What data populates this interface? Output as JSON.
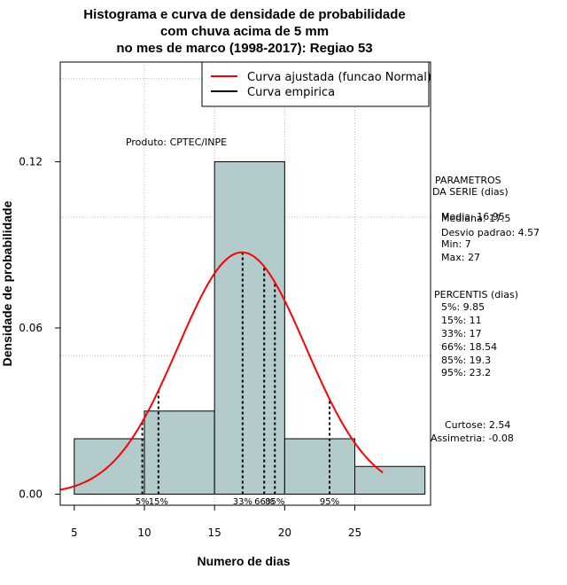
{
  "chart_data": {
    "type": "histogram",
    "title_lines": [
      "Histograma e curva de densidade de probabilidade",
      "com chuva acima de 5 mm",
      "no mes de marco (1998-2017): Regiao 53"
    ],
    "xlabel": "Numero de dias",
    "ylabel": "Densidade de probabilidade",
    "xlim": [
      4,
      30.4
    ],
    "ylim": [
      -0.004,
      0.156
    ],
    "xticks": [
      5,
      10,
      15,
      20,
      25
    ],
    "xtick_labels": [
      "5",
      "10",
      "15",
      "20",
      "25"
    ],
    "yticks": [
      0.0,
      0.06,
      0.12
    ],
    "ytick_labels": [
      "0.00",
      "0.06",
      "0.12"
    ],
    "grid_x": [
      10,
      15,
      20,
      25
    ],
    "grid_y": [
      0.05,
      0.1,
      0.15
    ],
    "bins": [
      {
        "from": 5,
        "to": 10,
        "density": 0.02
      },
      {
        "from": 10,
        "to": 15,
        "density": 0.03
      },
      {
        "from": 15,
        "to": 20,
        "density": 0.12
      },
      {
        "from": 20,
        "to": 25,
        "density": 0.02
      },
      {
        "from": 25,
        "to": 30,
        "density": 0.01
      }
    ],
    "bar_color": "#b4cbcb",
    "curve": {
      "name": "Curva ajustada (funcao Normal)",
      "distribution": "normal",
      "mean": 16.95,
      "sd": 4.57,
      "x_from": 4,
      "x_to": 27,
      "color": "#ff0000"
    },
    "percentile_markers": [
      {
        "label": "5%",
        "x": 9.85
      },
      {
        "label": "15%",
        "x": 11
      },
      {
        "label": "33%",
        "x": 17
      },
      {
        "label": "66%",
        "x": 18.54
      },
      {
        "label": "85%",
        "x": 19.3
      },
      {
        "label": "95%",
        "x": 23.2
      }
    ],
    "legend": {
      "position": "top-right",
      "entries": [
        {
          "label": "Curva ajustada (funcao Normal)",
          "color": "#ff0000"
        },
        {
          "label": "Curva empirica",
          "color": "#000000"
        }
      ]
    },
    "product_label": "Produto: CPTEC/INPE",
    "annotations": {
      "parametros": [
        "PARAMETROS",
        "DA SERIE (dias)",
        "Media: 16.95",
        "Mediana: 17.5",
        "Desvio padrao: 4.57",
        "Min: 7",
        "Max: 27"
      ],
      "percentis": [
        "PERCENTIS (dias)",
        "5%: 9.85",
        "15%: 11",
        "33%: 17",
        "66%: 18.54",
        "85%: 19.3",
        "95%: 23.2"
      ],
      "stats": [
        "Curtose: 2.54",
        "Assimetria: -0.08"
      ]
    }
  }
}
